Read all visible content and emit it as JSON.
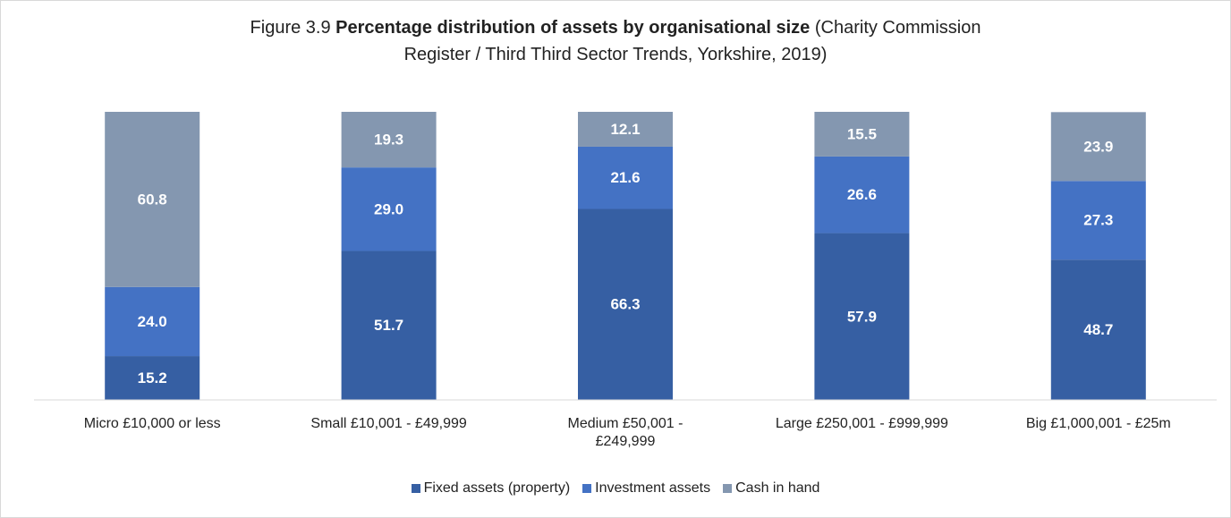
{
  "chart_data": {
    "type": "stacked_bar",
    "title_parts": [
      "Figure 3.9",
      "Percentage distribution of assets by organisational size",
      "(Charity Commission Register / Third Third Sector Trends, Yorkshire, 2019)"
    ],
    "categories": [
      "Micro £10,000 or less",
      "Small £10,001 - £49,999",
      "Medium £50,001 - £249,999",
      "Large £250,001 - £999,999",
      "Big £1,000,001 - £25m"
    ],
    "series": [
      {
        "name": "Fixed assets (property)",
        "color": "#365fa3",
        "values": [
          15.2,
          51.7,
          66.3,
          57.9,
          48.7
        ],
        "value_labels": [
          "15.2",
          "51.7",
          "66.3",
          "57.9",
          "48.7"
        ]
      },
      {
        "name": "Investment assets",
        "color": "#4472c4",
        "values": [
          24.0,
          29.0,
          21.6,
          26.6,
          27.3
        ],
        "value_labels": [
          "24.0",
          "29.0",
          "21.6",
          "26.6",
          "27.3"
        ]
      },
      {
        "name": "Cash in hand",
        "color": "#8497b0",
        "values": [
          60.8,
          19.3,
          12.1,
          15.5,
          23.9
        ],
        "value_labels": [
          "60.8",
          "19.3",
          "12.1",
          "15.5",
          "23.9"
        ]
      }
    ],
    "ylim": [
      0,
      100
    ],
    "legend": "bottom"
  }
}
